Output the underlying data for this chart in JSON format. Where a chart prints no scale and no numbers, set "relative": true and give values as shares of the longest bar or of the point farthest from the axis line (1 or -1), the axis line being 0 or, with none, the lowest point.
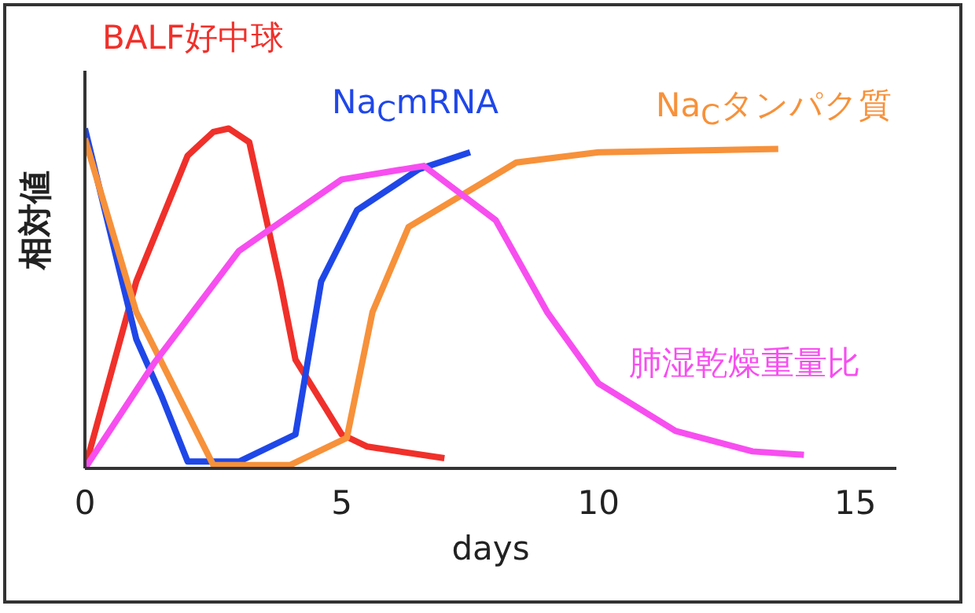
{
  "chart_data": {
    "type": "line",
    "relative": true,
    "xlabel": "days",
    "ylabel": "相対値",
    "xlim": [
      0,
      15.8
    ],
    "xticks": [
      0,
      5,
      10,
      15
    ],
    "grid": false,
    "marker": "none",
    "line_style": "solid",
    "series": [
      {
        "name": "BALF好中球",
        "color": "#f0302a",
        "x": [
          0,
          1,
          2,
          2.5,
          2.8,
          3.2,
          3.8,
          4.1,
          5,
          5.5,
          7
        ],
        "values": [
          0,
          0.55,
          0.92,
          0.99,
          1,
          0.96,
          0.55,
          0.32,
          0.1,
          0.064,
          0.03
        ]
      },
      {
        "name": "Na$_{C}$mRNA",
        "color": "#1f47e8",
        "x": [
          0,
          1,
          1.5,
          2,
          3,
          4.1,
          4.6,
          5.3,
          6.5,
          7.5
        ],
        "values": [
          1,
          0.38,
          0.21,
          0.02,
          0.02,
          0.1,
          0.55,
          0.76,
          0.88,
          0.93
        ]
      },
      {
        "name": "Na$_{C}$タンパク質",
        "color": "#f7913a",
        "x": [
          0,
          1,
          2,
          2.5,
          4,
          5.1,
          5.6,
          6.3,
          8.4,
          10,
          13.5
        ],
        "values": [
          0.97,
          0.46,
          0.16,
          0.01,
          0.01,
          0.09,
          0.46,
          0.71,
          0.9,
          0.93,
          0.94
        ]
      },
      {
        "name": "肺湿乾燥重量比",
        "color": "#f74ef0",
        "x": [
          0,
          1.35,
          3,
          5,
          6.6,
          8,
          9,
          10,
          11.5,
          13,
          14
        ],
        "values": [
          0,
          0.31,
          0.64,
          0.85,
          0.89,
          0.73,
          0.46,
          0.25,
          0.11,
          0.05,
          0.04
        ]
      }
    ]
  }
}
